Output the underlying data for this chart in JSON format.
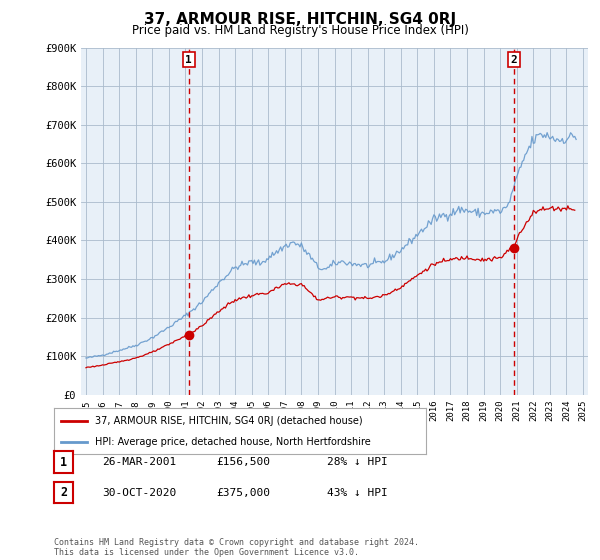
{
  "title": "37, ARMOUR RISE, HITCHIN, SG4 0RJ",
  "subtitle": "Price paid vs. HM Land Registry's House Price Index (HPI)",
  "footer": "Contains HM Land Registry data © Crown copyright and database right 2024.\nThis data is licensed under the Open Government Licence v3.0.",
  "legend_line1": "37, ARMOUR RISE, HITCHIN, SG4 0RJ (detached house)",
  "legend_line2": "HPI: Average price, detached house, North Hertfordshire",
  "marker1": {
    "label": "1",
    "date": "26-MAR-2001",
    "price": "£156,500",
    "note": "28% ↓ HPI",
    "year": 2001.21
  },
  "marker2": {
    "label": "2",
    "date": "30-OCT-2020",
    "price": "£375,000",
    "note": "43% ↓ HPI",
    "year": 2020.83
  },
  "ylim": [
    0,
    900000
  ],
  "yticks": [
    0,
    100000,
    200000,
    300000,
    400000,
    500000,
    600000,
    700000,
    800000,
    900000
  ],
  "ytick_labels": [
    "£0",
    "£100K",
    "£200K",
    "£300K",
    "£400K",
    "£500K",
    "£600K",
    "£700K",
    "£800K",
    "£900K"
  ],
  "xlim": [
    1994.7,
    2025.3
  ],
  "plot_bg_color": "#e8f0f8",
  "fig_bg_color": "#ffffff",
  "grid_color": "#aabbcc",
  "line_red_color": "#cc0000",
  "line_blue_color": "#6699cc",
  "marker_line_color": "#cc0000"
}
